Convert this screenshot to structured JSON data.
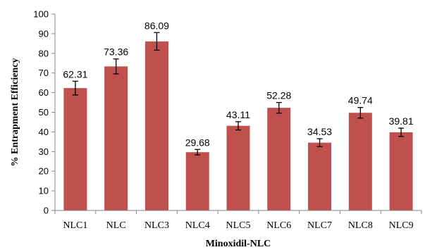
{
  "chart_data": {
    "type": "bar",
    "title": "",
    "xlabel": "Minoxidil-NLC",
    "ylabel": "% Entrapment Efficiency",
    "ylim": [
      0,
      100
    ],
    "yticks": [
      0,
      10,
      20,
      30,
      40,
      50,
      60,
      70,
      80,
      90,
      100
    ],
    "grid": false,
    "legend": "none",
    "categories": [
      "NLC1",
      "NLC",
      "NLC3",
      "NLC4",
      "NLC5",
      "NLC6",
      "NLC7",
      "NLC8",
      "NLC9"
    ],
    "values": [
      62.31,
      73.36,
      86.09,
      29.68,
      43.11,
      52.28,
      34.53,
      49.74,
      39.81
    ],
    "errors": [
      3.5,
      3.8,
      4.5,
      1.4,
      2.1,
      2.7,
      2.0,
      2.7,
      2.1
    ],
    "data_labels": [
      "62.31",
      "73.36",
      "86.09",
      "29.68",
      "43.11",
      "52.28",
      "34.53",
      "49.74",
      "39.81"
    ],
    "bar_color": "#c0504d",
    "axis_color": "#868686"
  }
}
